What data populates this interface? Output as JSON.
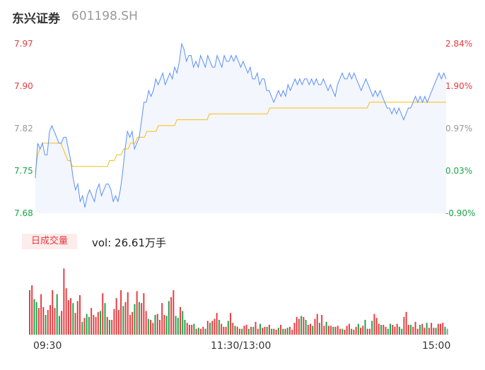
{
  "header": {
    "name": "东兴证券",
    "code": "601198.SH"
  },
  "volume_panel": {
    "badge": "日成交量",
    "summary": "vol: 26.61万手"
  },
  "colors": {
    "price": "#5b8ff9",
    "avg": "#f6bd16",
    "up": "#e8393d",
    "down": "#1aa34a",
    "flat": "#999999",
    "fill": "#f3f6fd"
  },
  "chart_data": [
    {
      "type": "line",
      "title": "",
      "xlabel": "",
      "ylabel": "",
      "x_ticks": [
        "09:30",
        "11:30/13:00",
        "15:00"
      ],
      "y_ticks": [
        "7.97",
        "7.90",
        "7.82",
        "7.75",
        "7.68"
      ],
      "y_ticks_right": [
        "2.84%",
        "1.90%",
        "0.97%",
        "0.03%",
        "-0.90%"
      ],
      "ylim": [
        7.68,
        7.97
      ],
      "grid": false,
      "series": [
        {
          "name": "",
          "values": [
            7.74,
            7.8,
            7.79,
            7.8,
            7.78,
            7.78,
            7.82,
            7.83,
            7.82,
            7.81,
            7.8,
            7.8,
            7.81,
            7.81,
            7.79,
            7.77,
            7.74,
            7.72,
            7.73,
            7.7,
            7.71,
            7.69,
            7.71,
            7.72,
            7.71,
            7.7,
            7.72,
            7.73,
            7.71,
            7.72,
            7.73,
            7.73,
            7.72,
            7.7,
            7.71,
            7.7,
            7.72,
            7.75,
            7.79,
            7.82,
            7.81,
            7.82,
            7.79,
            7.8,
            7.81,
            7.84,
            7.87,
            7.87,
            7.89,
            7.88,
            7.89,
            7.91,
            7.9,
            7.91,
            7.92,
            7.9,
            7.91,
            7.92,
            7.91,
            7.93,
            7.92,
            7.94,
            7.97,
            7.96,
            7.94,
            7.95,
            7.95,
            7.93,
            7.94,
            7.93,
            7.95,
            7.94,
            7.93,
            7.95,
            7.94,
            7.93,
            7.93,
            7.95,
            7.94,
            7.93,
            7.95,
            7.94,
            7.94,
            7.95,
            7.94,
            7.95,
            7.94,
            7.93,
            7.94,
            7.93,
            7.92,
            7.93,
            7.91,
            7.91,
            7.92,
            7.9,
            7.91,
            7.91,
            7.89,
            7.89,
            7.88,
            7.87,
            7.88,
            7.89,
            7.88,
            7.89,
            7.88,
            7.9,
            7.89,
            7.9,
            7.91,
            7.9,
            7.91,
            7.9,
            7.91,
            7.91,
            7.9,
            7.91,
            7.9,
            7.91,
            7.9,
            7.9,
            7.91,
            7.9,
            7.89,
            7.9,
            7.89,
            7.88,
            7.9,
            7.91,
            7.92,
            7.91,
            7.91,
            7.92,
            7.91,
            7.92,
            7.91,
            7.9,
            7.89,
            7.9,
            7.91,
            7.9,
            7.89,
            7.88,
            7.89,
            7.88,
            7.89,
            7.88,
            7.87,
            7.86,
            7.86,
            7.85,
            7.86,
            7.85,
            7.86,
            7.85,
            7.84,
            7.85,
            7.86,
            7.86,
            7.87,
            7.88,
            7.87,
            7.88,
            7.87,
            7.88,
            7.87,
            7.88,
            7.89,
            7.9,
            7.91,
            7.92,
            7.91,
            7.92,
            7.91
          ],
          "color": "#5b8ff9"
        },
        {
          "name": "",
          "values": [
            7.75,
            7.78,
            7.79,
            7.8,
            7.8,
            7.8,
            7.8,
            7.8,
            7.8,
            7.8,
            7.8,
            7.8,
            7.79,
            7.78,
            7.77,
            7.77,
            7.76,
            7.76,
            7.76,
            7.76,
            7.76,
            7.76,
            7.76,
            7.76,
            7.76,
            7.76,
            7.76,
            7.76,
            7.76,
            7.76,
            7.76,
            7.76,
            7.77,
            7.77,
            7.77,
            7.78,
            7.78,
            7.78,
            7.79,
            7.79,
            7.79,
            7.8,
            7.8,
            7.8,
            7.81,
            7.81,
            7.81,
            7.81,
            7.82,
            7.82,
            7.82,
            7.82,
            7.82,
            7.83,
            7.83,
            7.83,
            7.83,
            7.83,
            7.83,
            7.83,
            7.83,
            7.84,
            7.84,
            7.84,
            7.84,
            7.84,
            7.84,
            7.84,
            7.84,
            7.84,
            7.84,
            7.84,
            7.84,
            7.84,
            7.84,
            7.85,
            7.85,
            7.85,
            7.85,
            7.85,
            7.85,
            7.85,
            7.85,
            7.85,
            7.85,
            7.85,
            7.85,
            7.85,
            7.85,
            7.85,
            7.85,
            7.85,
            7.85,
            7.85,
            7.85,
            7.85,
            7.85,
            7.85,
            7.85,
            7.85,
            7.85,
            7.86,
            7.86,
            7.86,
            7.86,
            7.86,
            7.86,
            7.86,
            7.86,
            7.86,
            7.86,
            7.86,
            7.86,
            7.86,
            7.86,
            7.86,
            7.86,
            7.86,
            7.86,
            7.86,
            7.86,
            7.86,
            7.86,
            7.86,
            7.86,
            7.86,
            7.86,
            7.86,
            7.86,
            7.86,
            7.86,
            7.86,
            7.86,
            7.86,
            7.86,
            7.86,
            7.86,
            7.86,
            7.86,
            7.86,
            7.86,
            7.86,
            7.86,
            7.86,
            7.87,
            7.87,
            7.87,
            7.87,
            7.87,
            7.87,
            7.87,
            7.87,
            7.87,
            7.87,
            7.87,
            7.87,
            7.87,
            7.87,
            7.87,
            7.87,
            7.87,
            7.87,
            7.87,
            7.87,
            7.87,
            7.87,
            7.87,
            7.87,
            7.87,
            7.87,
            7.87,
            7.87,
            7.87,
            7.87,
            7.87,
            7.87,
            7.87,
            7.87
          ],
          "color": "#f6bd16"
        }
      ]
    },
    {
      "type": "bar",
      "title": "",
      "xlabel": "",
      "ylabel": "",
      "values": [
        45,
        50,
        36,
        33,
        27,
        41,
        28,
        20,
        25,
        30,
        45,
        27,
        41,
        19,
        24,
        67,
        47,
        35,
        37,
        32,
        22,
        34,
        40,
        13,
        17,
        21,
        18,
        27,
        20,
        18,
        23,
        24,
        42,
        32,
        18,
        15,
        15,
        26,
        37,
        25,
        45,
        29,
        33,
        43,
        20,
        23,
        31,
        44,
        33,
        32,
        42,
        24,
        16,
        15,
        12,
        20,
        21,
        15,
        32,
        20,
        19,
        34,
        38,
        45,
        19,
        17,
        28,
        24,
        15,
        12,
        10,
        10,
        11,
        6,
        7,
        6,
        8,
        6,
        14,
        12,
        14,
        16,
        22,
        15,
        11,
        8,
        8,
        14,
        22,
        12,
        9,
        8,
        6,
        6,
        9,
        10,
        6,
        8,
        8,
        13,
        6,
        11,
        7,
        8,
        8,
        10,
        6,
        6,
        5,
        7,
        10,
        6,
        6,
        7,
        8,
        5,
        12,
        18,
        16,
        19,
        18,
        15,
        10,
        11,
        9,
        16,
        21,
        12,
        20,
        9,
        13,
        9,
        9,
        8,
        8,
        9,
        6,
        6,
        5,
        9,
        11,
        6,
        5,
        8,
        11,
        7,
        9,
        15,
        6,
        6,
        14,
        21,
        17,
        11,
        10,
        10,
        8,
        6,
        11,
        10,
        8,
        11,
        8,
        6,
        18,
        23,
        10,
        10,
        8,
        13,
        6,
        10,
        11,
        7,
        12,
        7,
        12,
        7,
        7,
        11,
        11,
        12,
        8,
        6
      ],
      "directions": [
        "u",
        "u",
        "d",
        "d",
        "u",
        "u",
        "u",
        "d",
        "u",
        "u",
        "u",
        "u",
        "d",
        "d",
        "u",
        "u",
        "u",
        "u",
        "u",
        "d",
        "u",
        "u",
        "u",
        "d",
        "u",
        "d",
        "d",
        "u",
        "u",
        "u",
        "u",
        "d",
        "u",
        "d",
        "u",
        "d",
        "u",
        "u",
        "u",
        "u",
        "u",
        "d",
        "u",
        "u",
        "u",
        "u",
        "d",
        "u",
        "d",
        "u",
        "u",
        "u",
        "d",
        "u",
        "u",
        "d",
        "u",
        "u",
        "u",
        "u",
        "d",
        "d",
        "u",
        "u",
        "d",
        "d",
        "u",
        "d",
        "d",
        "u",
        "u",
        "u",
        "d",
        "u",
        "d",
        "u",
        "u",
        "d",
        "u",
        "d",
        "u",
        "u",
        "u",
        "d",
        "u",
        "u",
        "u",
        "d",
        "u",
        "u",
        "d",
        "u",
        "u",
        "d",
        "u",
        "u",
        "d",
        "u",
        "d",
        "u",
        "u",
        "d",
        "u",
        "u",
        "d",
        "u",
        "d",
        "u",
        "u",
        "d",
        "u",
        "d",
        "u",
        "d",
        "u",
        "u",
        "u",
        "u",
        "u",
        "d",
        "u",
        "d",
        "u",
        "u",
        "d",
        "u",
        "u",
        "d",
        "u",
        "u",
        "d",
        "u",
        "u",
        "d",
        "u",
        "u",
        "u",
        "d",
        "u",
        "u",
        "u",
        "d",
        "u",
        "u",
        "d",
        "u",
        "u",
        "d",
        "u",
        "u",
        "d",
        "u",
        "u",
        "u",
        "d",
        "u",
        "u",
        "d",
        "d",
        "u",
        "u",
        "u",
        "d",
        "d",
        "u",
        "u",
        "u",
        "d",
        "u",
        "u",
        "u",
        "d",
        "u",
        "u",
        "d",
        "u",
        "u",
        "u",
        "d",
        "u",
        "u",
        "u",
        "d",
        "f"
      ],
      "ylim": [
        0,
        70
      ]
    }
  ]
}
